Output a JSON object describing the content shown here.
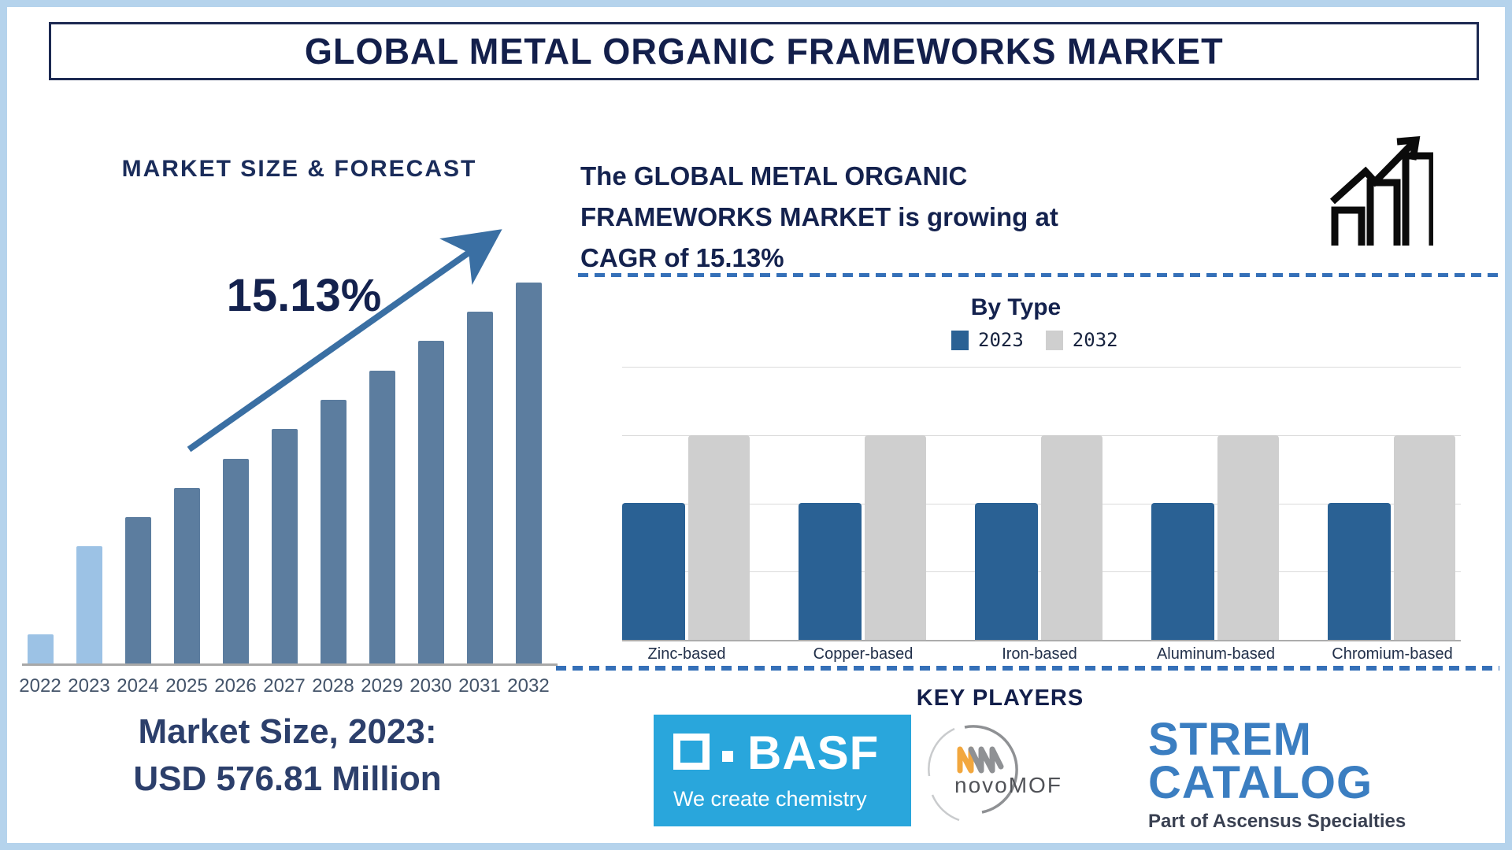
{
  "page_title": "GLOBAL METAL ORGANIC FRAMEWORKS MARKET",
  "left_panel": {
    "heading": "MARKET SIZE & FORECAST",
    "cagr_label": "15.13%",
    "market_size_caption": {
      "line1": "Market Size, 2023:",
      "line2": "USD 576.81 Million"
    }
  },
  "right_panel": {
    "headline_lines": [
      "The GLOBAL METAL ORGANIC",
      "FRAMEWORKS MARKET is growing at",
      "CAGR of 15.13%"
    ]
  },
  "key_players": {
    "heading": "KEY PLAYERS",
    "basf": {
      "wordmark": "BASF",
      "tagline": "We create chemistry",
      "bg_color": "#29A6DC"
    },
    "novomof": {
      "wordmark_lower": "novo",
      "wordmark_upper": "MOF",
      "orange": "#F2A73E",
      "gray": "#8F9194"
    },
    "strem": {
      "line1": "STREM",
      "line2": "CATALOG",
      "tagline": "Part of Ascensus Specialties",
      "blue": "#3B7EC1"
    }
  },
  "chart_data": [
    {
      "type": "bar",
      "title": "MARKET SIZE & FORECAST",
      "categories": [
        "2022",
        "2023",
        "2024",
        "2025",
        "2026",
        "2027",
        "2028",
        "2029",
        "2030",
        "2031",
        "2032"
      ],
      "values": [
        7.6,
        30.8,
        38.4,
        46.1,
        53.7,
        61.6,
        69.2,
        76.9,
        84.7,
        92.4,
        100
      ],
      "unit": "relative bar height, % of 2032 bar (no value axis shown)",
      "annotation": "15.13% CAGR trend arrow pointing up-right",
      "known_point": "Market Size 2023 = USD 576.81 Million",
      "bar_colors": {
        "highlight_years": [
          "2022",
          "2023"
        ],
        "highlight": "#9CC2E5",
        "default": "#5C7D9F"
      },
      "xlabel": "",
      "ylabel": "",
      "grid": "none, gray x-axis line only"
    },
    {
      "type": "bar",
      "title": "By Type",
      "categories": [
        "Zinc-based",
        "Copper-based",
        "Iron-based",
        "Aluminum-based",
        "Chromium-based"
      ],
      "series": [
        {
          "name": "2023",
          "color": "#2A6194",
          "values": [
            2,
            2,
            2,
            2,
            2
          ]
        },
        {
          "name": "2032",
          "color": "#CFCFCF",
          "values": [
            3,
            3,
            3,
            3,
            3
          ]
        }
      ],
      "unit": "relative grid units (value axis not labeled)",
      "ylim": [
        0,
        4
      ],
      "grid": "horizontal gridlines at each unit",
      "legend_position": "top center"
    }
  ],
  "colors": {
    "navy_text": "#14224E",
    "page_border": "#B5D3EC",
    "banner_border": "#1D2A52",
    "trend_arrow": "#3A6FA3",
    "dashed_divider": "#3570B8",
    "left_axis_line": "#A8A8A8",
    "year_label": "#44546A",
    "growth_icon": "#0B0B0B"
  }
}
